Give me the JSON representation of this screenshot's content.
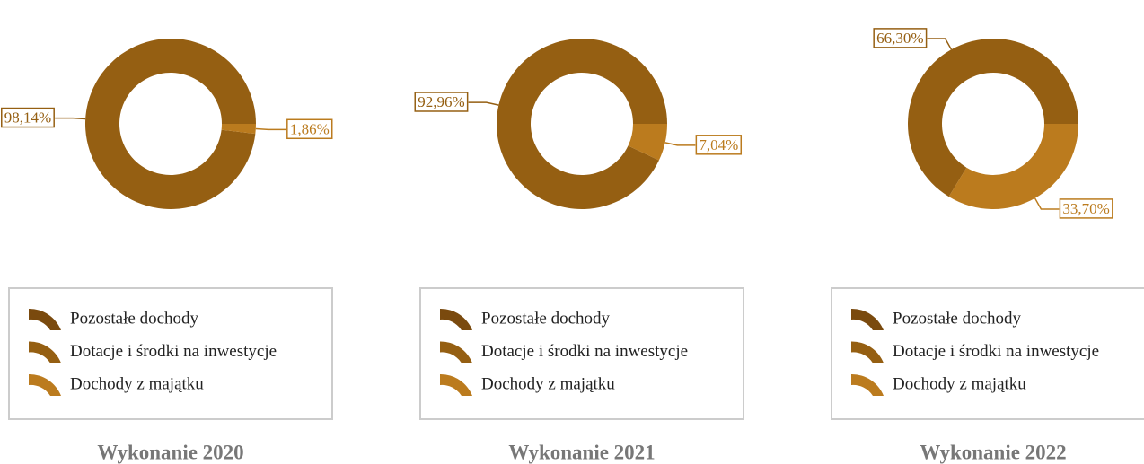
{
  "chart_data": [
    {
      "type": "pie",
      "title": "Wykonanie 2020",
      "categories": [
        "Pozostałe dochody",
        "Dotacje i środki na inwestycje",
        "Dochody z majątku"
      ],
      "colors": [
        "#7a4a0e",
        "#955f12",
        "#bb7b1e"
      ],
      "values": [
        0,
        98.14,
        1.86
      ],
      "value_labels": [
        null,
        "98,14%",
        "1,86%"
      ]
    },
    {
      "type": "pie",
      "title": "Wykonanie 2021",
      "categories": [
        "Pozostałe dochody",
        "Dotacje i środki na inwestycje",
        "Dochody z majątku"
      ],
      "colors": [
        "#7a4a0e",
        "#955f12",
        "#bb7b1e"
      ],
      "values": [
        0,
        92.96,
        7.04
      ],
      "value_labels": [
        null,
        "92,96%",
        "7,04%"
      ]
    },
    {
      "type": "pie",
      "title": "Wykonanie 2022",
      "categories": [
        "Pozostałe dochody",
        "Dotacje i środki na inwestycje",
        "Dochody z majątku"
      ],
      "colors": [
        "#7a4a0e",
        "#955f12",
        "#bb7b1e"
      ],
      "values": [
        0,
        66.3,
        33.7
      ],
      "value_labels": [
        null,
        "66,30%",
        "33,70%"
      ]
    }
  ]
}
